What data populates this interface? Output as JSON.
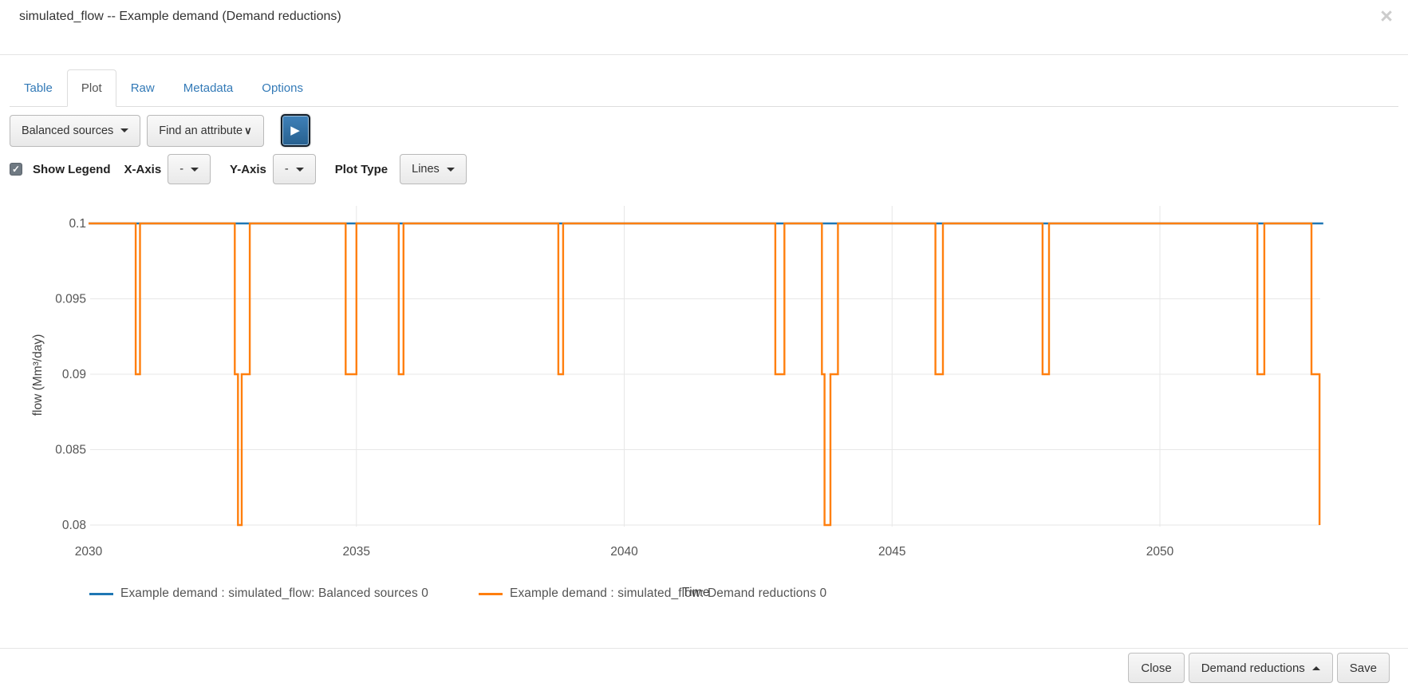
{
  "header": {
    "title": "simulated_flow -- Example demand (Demand reductions)",
    "close_icon": "×"
  },
  "tabs": [
    {
      "label": "Table",
      "active": false
    },
    {
      "label": "Plot",
      "active": true
    },
    {
      "label": "Raw",
      "active": false
    },
    {
      "label": "Metadata",
      "active": false
    },
    {
      "label": "Options",
      "active": false
    }
  ],
  "toolbar": {
    "scenario_dropdown_value": "Balanced sources",
    "attribute_dropdown_value": "Find an attribute",
    "attribute_chevron_icon": "∨",
    "play_icon": "▶"
  },
  "plot_controls": {
    "show_legend_label": "Show Legend",
    "show_legend_checked": true,
    "check_icon": "✓",
    "x_axis_label": "X-Axis",
    "x_axis_value": "-",
    "y_axis_label": "Y-Axis",
    "y_axis_value": "-",
    "plot_type_label": "Plot Type",
    "plot_type_value": "Lines"
  },
  "footer": {
    "close_label": "Close",
    "variant_dropdown_label": "Demand reductions",
    "save_label": "Save"
  },
  "chart_data": {
    "type": "line",
    "xlabel": "Time",
    "ylabel": "flow (Mm³/day)",
    "xlim": [
      2030,
      2053.2
    ],
    "ylim": [
      0.08,
      0.1
    ],
    "x_ticks": [
      2030,
      2035,
      2040,
      2045,
      2050
    ],
    "y_ticks": [
      0.1,
      0.095,
      0.09,
      0.085,
      0.08
    ],
    "y_tick_labels": [
      "0.1",
      "0.095",
      "0.09",
      "0.085",
      "0.08"
    ],
    "grid": true,
    "legend_position": "bottom",
    "series": [
      {
        "name": "Example demand : simulated_flow: Balanced sources 0",
        "color": "#1f77b4",
        "points": [
          [
            2030,
            0.1
          ],
          [
            2053.05,
            0.1
          ]
        ]
      },
      {
        "name": "Example demand : simulated_flow: Demand reductions 0",
        "color": "#ff7f0e",
        "points": [
          [
            2030,
            0.1
          ],
          [
            2030.88,
            0.1
          ],
          [
            2030.88,
            0.09
          ],
          [
            2030.96,
            0.09
          ],
          [
            2030.96,
            0.1
          ],
          [
            2032.73,
            0.1
          ],
          [
            2032.73,
            0.09
          ],
          [
            2032.79,
            0.09
          ],
          [
            2032.79,
            0.08
          ],
          [
            2032.86,
            0.08
          ],
          [
            2032.86,
            0.09
          ],
          [
            2033.01,
            0.09
          ],
          [
            2033.01,
            0.1
          ],
          [
            2034.8,
            0.1
          ],
          [
            2034.8,
            0.09
          ],
          [
            2035.0,
            0.09
          ],
          [
            2035.0,
            0.1
          ],
          [
            2035.79,
            0.1
          ],
          [
            2035.79,
            0.09
          ],
          [
            2035.88,
            0.09
          ],
          [
            2035.88,
            0.1
          ],
          [
            2038.77,
            0.1
          ],
          [
            2038.77,
            0.09
          ],
          [
            2038.86,
            0.09
          ],
          [
            2038.86,
            0.1
          ],
          [
            2042.82,
            0.1
          ],
          [
            2042.82,
            0.09
          ],
          [
            2042.99,
            0.09
          ],
          [
            2042.99,
            0.1
          ],
          [
            2043.69,
            0.1
          ],
          [
            2043.69,
            0.09
          ],
          [
            2043.74,
            0.09
          ],
          [
            2043.74,
            0.08
          ],
          [
            2043.85,
            0.08
          ],
          [
            2043.85,
            0.09
          ],
          [
            2043.99,
            0.09
          ],
          [
            2043.99,
            0.1
          ],
          [
            2045.81,
            0.1
          ],
          [
            2045.81,
            0.09
          ],
          [
            2045.95,
            0.09
          ],
          [
            2045.95,
            0.1
          ],
          [
            2047.81,
            0.1
          ],
          [
            2047.81,
            0.09
          ],
          [
            2047.93,
            0.09
          ],
          [
            2047.93,
            0.1
          ],
          [
            2051.82,
            0.1
          ],
          [
            2051.82,
            0.09
          ],
          [
            2051.95,
            0.09
          ],
          [
            2051.95,
            0.1
          ],
          [
            2052.83,
            0.1
          ],
          [
            2052.83,
            0.09
          ],
          [
            2052.98,
            0.09
          ],
          [
            2052.98,
            0.08
          ]
        ]
      }
    ]
  }
}
